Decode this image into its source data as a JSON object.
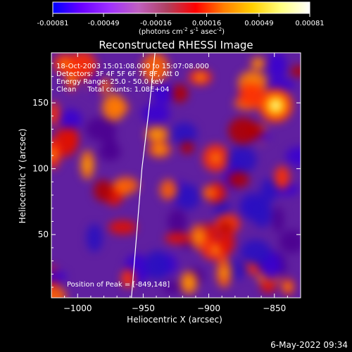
{
  "colorbar": {
    "ticks": [
      "-0.00081",
      "-0.00049",
      "-0.00016",
      "0.00016",
      "0.00049",
      "0.00081"
    ],
    "tick_values": [
      -0.00081,
      -0.00049,
      -0.00016,
      0.00016,
      0.00049,
      0.00081
    ],
    "unit_main": "(photons cm",
    "unit_sup1": "-2",
    "unit_mid": " s",
    "unit_sup2": "-1",
    "unit_end": " asec",
    "unit_sup3": "-2",
    "unit_close": ")",
    "stops": [
      "#0000ff",
      "#6a00ff",
      "#a030ff",
      "#c060c0",
      "#b04060",
      "#ff0000",
      "#ff8000",
      "#ffd000",
      "#ffff80",
      "#ffffff"
    ]
  },
  "chart_data": {
    "type": "heatmap",
    "title": "Reconstructed RHESSI Image",
    "xlabel": "Heliocentric X (arcsec)",
    "ylabel": "Heliocentric Y (arcsec)",
    "xlim": [
      -1020,
      -830
    ],
    "ylim": [
      2,
      188
    ],
    "xticks": [
      -1000,
      -950,
      -900,
      -850
    ],
    "xtick_labels": [
      "−1000",
      "−950",
      "−900",
      "−850"
    ],
    "yticks": [
      50,
      100,
      150
    ],
    "ytick_labels": [
      "50",
      "100",
      "150"
    ],
    "info": [
      "18-Oct-2003 15:01:08.000 to 15:07:08.000",
      "Detectors: 3F 4F 5F 6F 7F 8F, Att 0",
      "Energy Range: 25.0 - 50.0 keV",
      "Clean     Total counts: 1.08E+04"
    ],
    "peak_label": "Position of Peak = [-849,148]",
    "peak": [
      -849,
      148
    ],
    "limb_curve": [
      [
        -959,
        2
      ],
      [
        -955,
        50
      ],
      [
        -951,
        100
      ],
      [
        -945,
        150
      ],
      [
        -941,
        188
      ]
    ],
    "grid": false
  },
  "footer": {
    "timestamp": "6-May-2022 09:34"
  }
}
